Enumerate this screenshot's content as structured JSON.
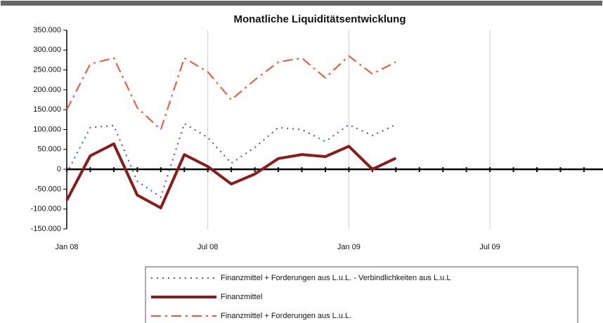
{
  "chart_data": {
    "type": "line",
    "title": "Monatliche Liquiditätsentwicklung",
    "categories": [
      "Jan 08",
      null,
      null,
      null,
      null,
      null,
      "Jul 08",
      null,
      null,
      null,
      null,
      null,
      "Jan 09",
      null,
      null,
      null,
      null,
      null,
      "Jul 09",
      null,
      null,
      null,
      null
    ],
    "series": [
      {
        "name": "Finanzmittel + Forderungen aus L.u.L. - Verbindlichkeiten aus L.u.L",
        "color": "#3a56b8",
        "style": "dotted",
        "values": [
          -10000,
          105000,
          110000,
          -30000,
          -70000,
          115000,
          80000,
          15000,
          55000,
          105000,
          100000,
          70000,
          112000,
          85000,
          112000,
          null,
          null,
          null,
          null,
          null,
          null,
          null,
          null
        ]
      },
      {
        "name": "Finanzmittel",
        "color": "#8b1a1a",
        "style": "solid",
        "values": [
          -78000,
          34000,
          64000,
          -65000,
          -97000,
          37000,
          7000,
          -37000,
          -12000,
          27000,
          37000,
          32000,
          58000,
          0,
          28000,
          null,
          null,
          null,
          null,
          null,
          null,
          null,
          null
        ]
      },
      {
        "name": "Finanzmittel + Forderungen aus L.u.L.",
        "color": "#e8553a",
        "style": "dashdot",
        "values": [
          150000,
          265000,
          280000,
          155000,
          100000,
          280000,
          245000,
          175000,
          225000,
          270000,
          280000,
          230000,
          285000,
          240000,
          270000,
          null,
          null,
          null,
          null,
          null,
          null,
          null,
          null
        ]
      }
    ],
    "ylim": [
      -150000,
      350000
    ],
    "yticks": [
      {
        "value": -150000,
        "label": "-150.000"
      },
      {
        "value": -100000,
        "label": "-100.000"
      },
      {
        "value": -50000,
        "label": "-50.000"
      },
      0,
      {
        "value": 50000,
        "label": "50.000"
      },
      {
        "value": 100000,
        "label": "100.000"
      },
      {
        "value": 150000,
        "label": "150.000"
      },
      {
        "value": 200000,
        "label": "200.000"
      },
      {
        "value": 250000,
        "label": "250.000"
      },
      {
        "value": 300000,
        "label": "300.000"
      },
      {
        "value": 350000,
        "label": "350.000"
      }
    ],
    "grid": true,
    "legend": "bottom"
  }
}
